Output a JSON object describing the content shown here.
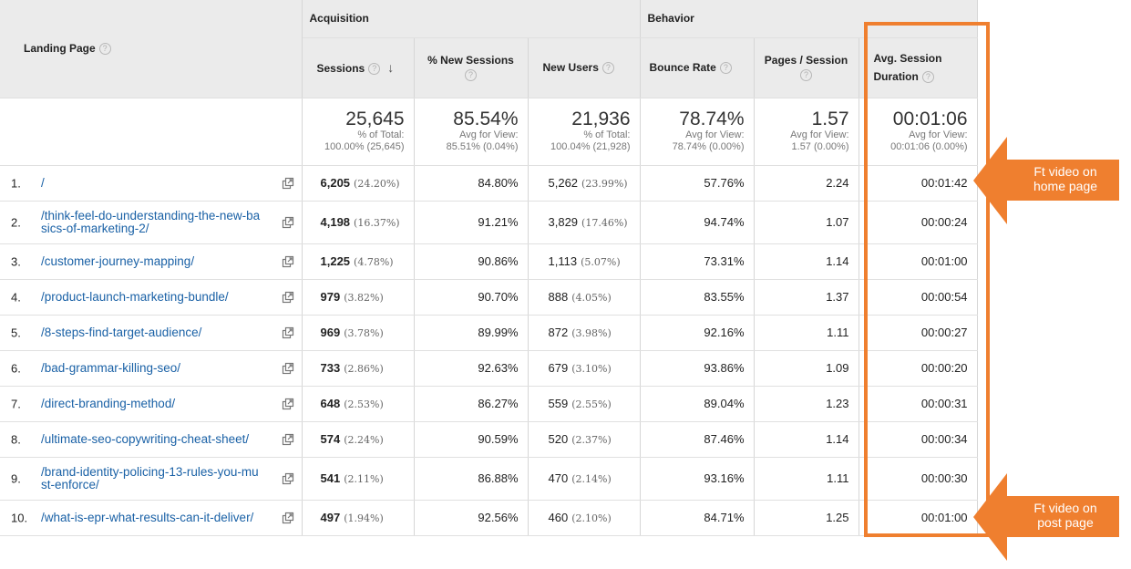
{
  "header": {
    "landing_page": "Landing Page",
    "acquisition": "Acquisition",
    "behavior": "Behavior",
    "help": "?",
    "sort_arrow": "↓",
    "columns": {
      "sessions": "Sessions",
      "new_sessions_pct": "% New Sessions",
      "new_users": "New Users",
      "bounce_rate": "Bounce Rate",
      "pages_per_session": "Pages / Session",
      "avg_duration_l1": "Avg. Session",
      "avg_duration_l2": "Duration"
    }
  },
  "totals": {
    "sessions": {
      "value": "25,645",
      "l1": "% of Total:",
      "l2": "100.00% (25,645)"
    },
    "new_sessions_pct": {
      "value": "85.54%",
      "l1": "Avg for View:",
      "l2": "85.51% (0.04%)"
    },
    "new_users": {
      "value": "21,936",
      "l1": "% of Total:",
      "l2": "100.04% (21,928)"
    },
    "bounce_rate": {
      "value": "78.74%",
      "l1": "Avg for View:",
      "l2": "78.74% (0.00%)"
    },
    "pages_per_session": {
      "value": "1.57",
      "l1": "Avg for View:",
      "l2": "1.57 (0.00%)"
    },
    "avg_duration": {
      "value": "00:01:06",
      "l1": "Avg for View:",
      "l2": "00:01:06 (0.00%)"
    }
  },
  "rows": [
    {
      "num": "1.",
      "page_l1": "/",
      "page_l2": "",
      "sessions": "6,205",
      "sessions_pct": "(24.20%)",
      "new_sessions": "84.80%",
      "new_users": "5,262",
      "new_users_pct": "(23.99%)",
      "bounce": "57.76%",
      "pages": "2.24",
      "duration": "00:01:42"
    },
    {
      "num": "2.",
      "page_l1": "/think-feel-do-understanding-the-new-ba",
      "page_l2": "sics-of-marketing-2/",
      "sessions": "4,198",
      "sessions_pct": "(16.37%)",
      "new_sessions": "91.21%",
      "new_users": "3,829",
      "new_users_pct": "(17.46%)",
      "bounce": "94.74%",
      "pages": "1.07",
      "duration": "00:00:24"
    },
    {
      "num": "3.",
      "page_l1": "/customer-journey-mapping/",
      "page_l2": "",
      "sessions": "1,225",
      "sessions_pct": "(4.78%)",
      "new_sessions": "90.86%",
      "new_users": "1,113",
      "new_users_pct": "(5.07%)",
      "bounce": "73.31%",
      "pages": "1.14",
      "duration": "00:01:00"
    },
    {
      "num": "4.",
      "page_l1": "/product-launch-marketing-bundle/",
      "page_l2": "",
      "sessions": "979",
      "sessions_pct": "(3.82%)",
      "new_sessions": "90.70%",
      "new_users": "888",
      "new_users_pct": "(4.05%)",
      "bounce": "83.55%",
      "pages": "1.37",
      "duration": "00:00:54"
    },
    {
      "num": "5.",
      "page_l1": "/8-steps-find-target-audience/",
      "page_l2": "",
      "sessions": "969",
      "sessions_pct": "(3.78%)",
      "new_sessions": "89.99%",
      "new_users": "872",
      "new_users_pct": "(3.98%)",
      "bounce": "92.16%",
      "pages": "1.11",
      "duration": "00:00:27"
    },
    {
      "num": "6.",
      "page_l1": "/bad-grammar-killing-seo/",
      "page_l2": "",
      "sessions": "733",
      "sessions_pct": "(2.86%)",
      "new_sessions": "92.63%",
      "new_users": "679",
      "new_users_pct": "(3.10%)",
      "bounce": "93.86%",
      "pages": "1.09",
      "duration": "00:00:20"
    },
    {
      "num": "7.",
      "page_l1": "/direct-branding-method/",
      "page_l2": "",
      "sessions": "648",
      "sessions_pct": "(2.53%)",
      "new_sessions": "86.27%",
      "new_users": "559",
      "new_users_pct": "(2.55%)",
      "bounce": "89.04%",
      "pages": "1.23",
      "duration": "00:00:31"
    },
    {
      "num": "8.",
      "page_l1": "/ultimate-seo-copywriting-cheat-sheet/",
      "page_l2": "",
      "sessions": "574",
      "sessions_pct": "(2.24%)",
      "new_sessions": "90.59%",
      "new_users": "520",
      "new_users_pct": "(2.37%)",
      "bounce": "87.46%",
      "pages": "1.14",
      "duration": "00:00:34"
    },
    {
      "num": "9.",
      "page_l1": "/brand-identity-policing-13-rules-you-mu",
      "page_l2": "st-enforce/",
      "sessions": "541",
      "sessions_pct": "(2.11%)",
      "new_sessions": "86.88%",
      "new_users": "470",
      "new_users_pct": "(2.14%)",
      "bounce": "93.16%",
      "pages": "1.11",
      "duration": "00:00:30"
    },
    {
      "num": "10.",
      "page_l1": "/what-is-epr-what-results-can-it-deliver/",
      "page_l2": "",
      "sessions": "497",
      "sessions_pct": "(1.94%)",
      "new_sessions": "92.56%",
      "new_users": "460",
      "new_users_pct": "(2.10%)",
      "bounce": "84.71%",
      "pages": "1.25",
      "duration": "00:01:00"
    }
  ],
  "annotations": {
    "color": "#ef7f2f",
    "home_l1": "Ft video on",
    "home_l2": "home page",
    "post_l1": "Ft video on",
    "post_l2": "post page"
  }
}
